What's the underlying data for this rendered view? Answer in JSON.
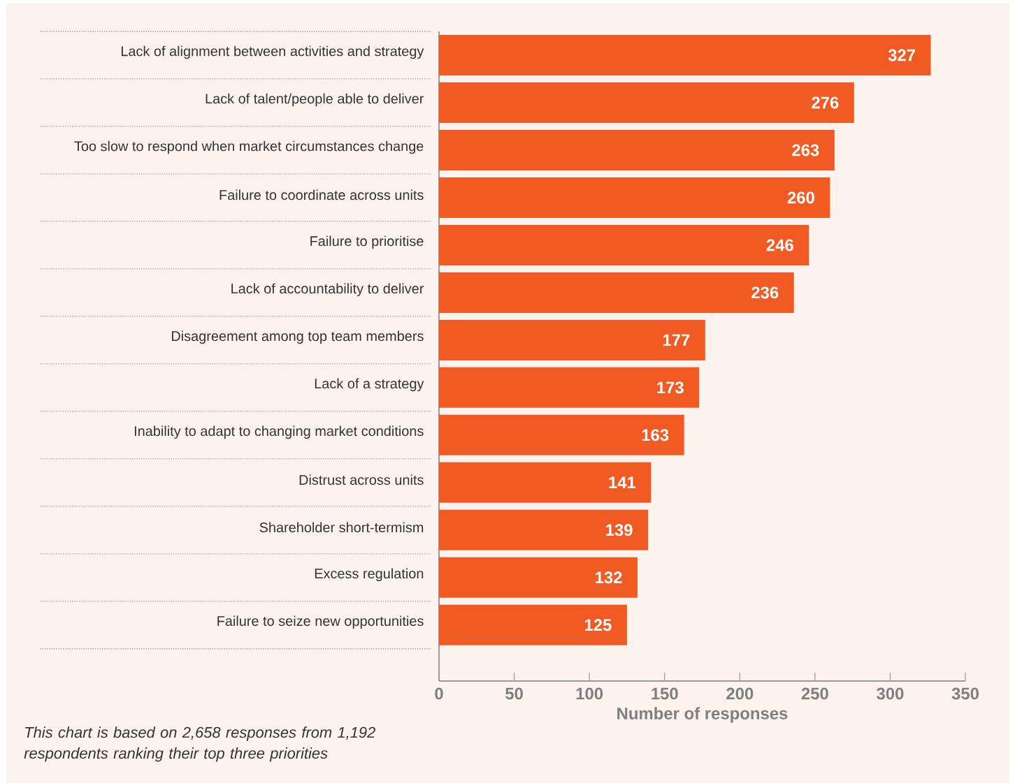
{
  "chart_data": {
    "type": "bar",
    "orientation": "horizontal",
    "categories": [
      "Lack of alignment between activities and strategy",
      "Lack of talent/people able to deliver",
      "Too slow to respond when market circumstances change",
      "Failure to coordinate across units",
      "Failure to prioritise",
      "Lack of accountability to deliver",
      "Disagreement among top team members",
      "Lack of a strategy",
      "Inability to adapt to changing market conditions",
      "Distrust across units",
      "Shareholder short-termism",
      "Excess regulation",
      "Failure to seize new opportunities"
    ],
    "values": [
      327,
      276,
      263,
      260,
      246,
      236,
      177,
      173,
      163,
      141,
      139,
      132,
      125
    ],
    "color": "#f15a22",
    "data_labels": true,
    "xlim": [
      0,
      350
    ],
    "xticks": [
      0,
      50,
      100,
      150,
      200,
      250,
      300,
      350
    ],
    "xlabel": "Number of responses",
    "annotations": [
      "*This chart is based on 2,658 responses from 1,192 respondents ranking their top three priorities*"
    ]
  }
}
